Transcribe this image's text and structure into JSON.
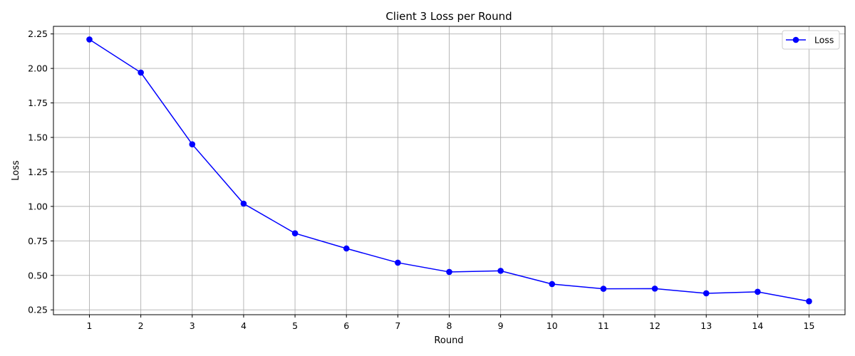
{
  "chart_data": {
    "type": "line",
    "title": "Client 3 Loss per Round",
    "xlabel": "Round",
    "ylabel": "Loss",
    "x": [
      1,
      2,
      3,
      4,
      5,
      6,
      7,
      8,
      9,
      10,
      11,
      12,
      13,
      14,
      15
    ],
    "xticks": [
      1,
      2,
      3,
      4,
      5,
      6,
      7,
      8,
      9,
      10,
      11,
      12,
      13,
      14,
      15
    ],
    "xlim": [
      0.3,
      15.7
    ],
    "yticks": [
      "0.25",
      "0.50",
      "0.75",
      "1.00",
      "1.25",
      "1.50",
      "1.75",
      "2.00",
      "2.25"
    ],
    "ylim": [
      0.215,
      2.305
    ],
    "grid": true,
    "legend_position": "top-right",
    "series": [
      {
        "name": "Loss",
        "color": "#0000ff",
        "marker": "circle",
        "values": [
          2.21,
          1.97,
          1.45,
          1.02,
          0.805,
          0.695,
          0.592,
          0.525,
          0.533,
          0.437,
          0.403,
          0.404,
          0.37,
          0.381,
          0.312
        ]
      }
    ]
  }
}
